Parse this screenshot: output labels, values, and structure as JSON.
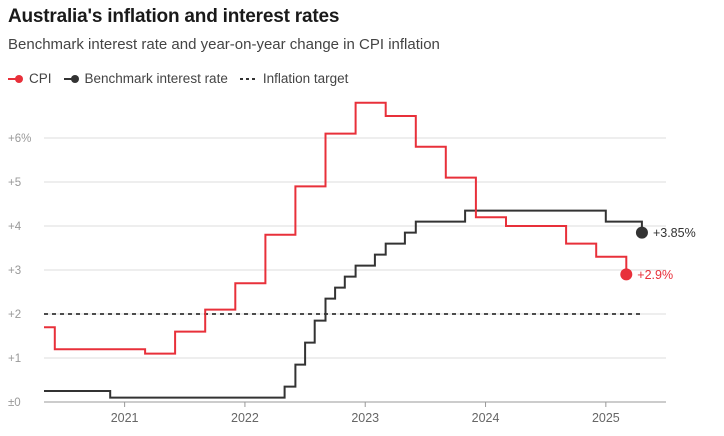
{
  "chart_data": {
    "type": "line",
    "title": "Australia's inflation and interest rates",
    "subtitle": "Benchmark interest rate and year-on-year change in CPI inflation",
    "ylim": [
      0,
      7
    ],
    "yticks": [
      {
        "value": 0,
        "label": "±0"
      },
      {
        "value": 1,
        "label": "+1"
      },
      {
        "value": 2,
        "label": "+2"
      },
      {
        "value": 3,
        "label": "+3"
      },
      {
        "value": 4,
        "label": "+4"
      },
      {
        "value": 5,
        "label": "+5"
      },
      {
        "value": 6,
        "label": "+6%"
      }
    ],
    "xlim": [
      2020.33,
      2025.5
    ],
    "xticks": [
      {
        "value": 2021,
        "label": "2021"
      },
      {
        "value": 2022,
        "label": "2022"
      },
      {
        "value": 2023,
        "label": "2023"
      },
      {
        "value": 2024,
        "label": "2024"
      },
      {
        "value": 2025,
        "label": "2025"
      }
    ],
    "series": [
      {
        "name": "CPI",
        "color": "#e8303a",
        "step": true,
        "end_label": "+2.9%",
        "points": [
          [
            2020.33,
            1.7
          ],
          [
            2020.42,
            1.2
          ],
          [
            2020.67,
            1.2
          ],
          [
            2020.92,
            1.2
          ],
          [
            2021.17,
            1.1
          ],
          [
            2021.42,
            1.6
          ],
          [
            2021.67,
            2.1
          ],
          [
            2021.92,
            2.7
          ],
          [
            2022.17,
            3.8
          ],
          [
            2022.42,
            4.9
          ],
          [
            2022.67,
            6.1
          ],
          [
            2022.92,
            6.8
          ],
          [
            2023.17,
            6.5
          ],
          [
            2023.42,
            5.8
          ],
          [
            2023.67,
            5.1
          ],
          [
            2023.92,
            4.2
          ],
          [
            2024.17,
            4.0
          ],
          [
            2024.42,
            4.0
          ],
          [
            2024.67,
            3.6
          ],
          [
            2024.92,
            3.3
          ],
          [
            2025.17,
            2.9
          ]
        ]
      },
      {
        "name": "Benchmark interest rate",
        "color": "#333333",
        "step": true,
        "end_label": "+3.85%",
        "points": [
          [
            2020.33,
            0.25
          ],
          [
            2020.88,
            0.1
          ],
          [
            2022.33,
            0.35
          ],
          [
            2022.42,
            0.85
          ],
          [
            2022.5,
            1.35
          ],
          [
            2022.58,
            1.85
          ],
          [
            2022.67,
            2.35
          ],
          [
            2022.75,
            2.6
          ],
          [
            2022.83,
            2.85
          ],
          [
            2022.92,
            3.1
          ],
          [
            2023.08,
            3.35
          ],
          [
            2023.17,
            3.6
          ],
          [
            2023.33,
            3.85
          ],
          [
            2023.42,
            4.1
          ],
          [
            2023.83,
            4.35
          ],
          [
            2025.0,
            4.1
          ],
          [
            2025.3,
            3.85
          ]
        ]
      },
      {
        "name": "Inflation target",
        "color": "#333333",
        "dashed": true,
        "points": [
          [
            2020.33,
            2.0
          ],
          [
            2025.3,
            2.0
          ]
        ]
      }
    ]
  }
}
